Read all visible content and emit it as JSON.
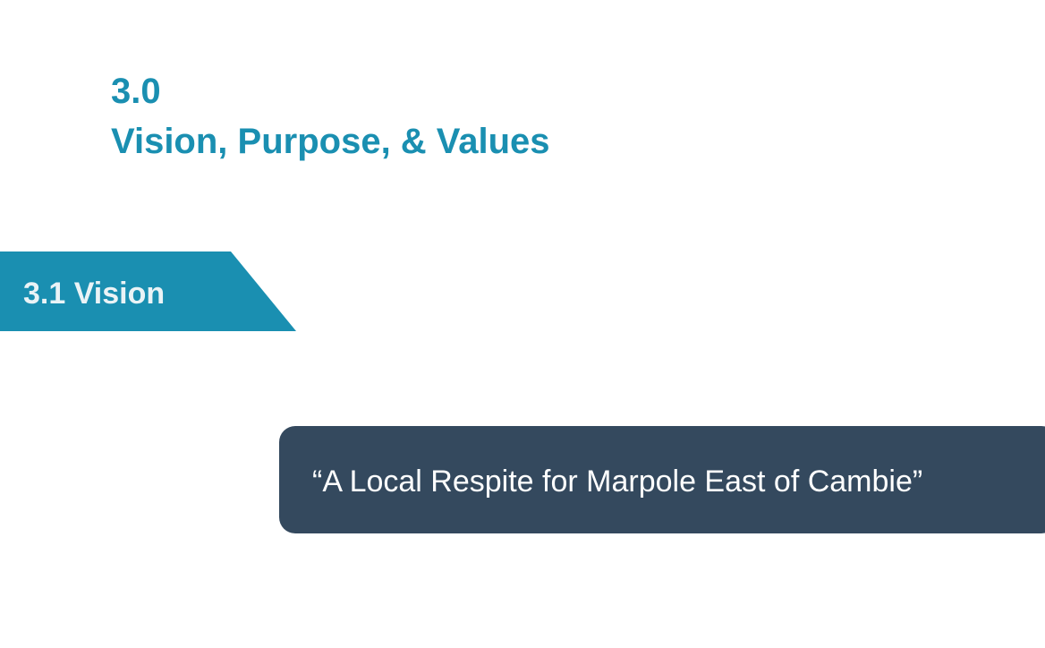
{
  "section": {
    "number": "3.0",
    "title": "Vision, Purpose, & Values"
  },
  "subsection": {
    "label": "3.1 Vision"
  },
  "vision_statement": {
    "text": "“A Local Respite for Marpole East of Cambie”"
  },
  "colors": {
    "accent_teal": "#1a8fb1",
    "quote_box_navy": "#34495e",
    "background": "#ffffff"
  }
}
